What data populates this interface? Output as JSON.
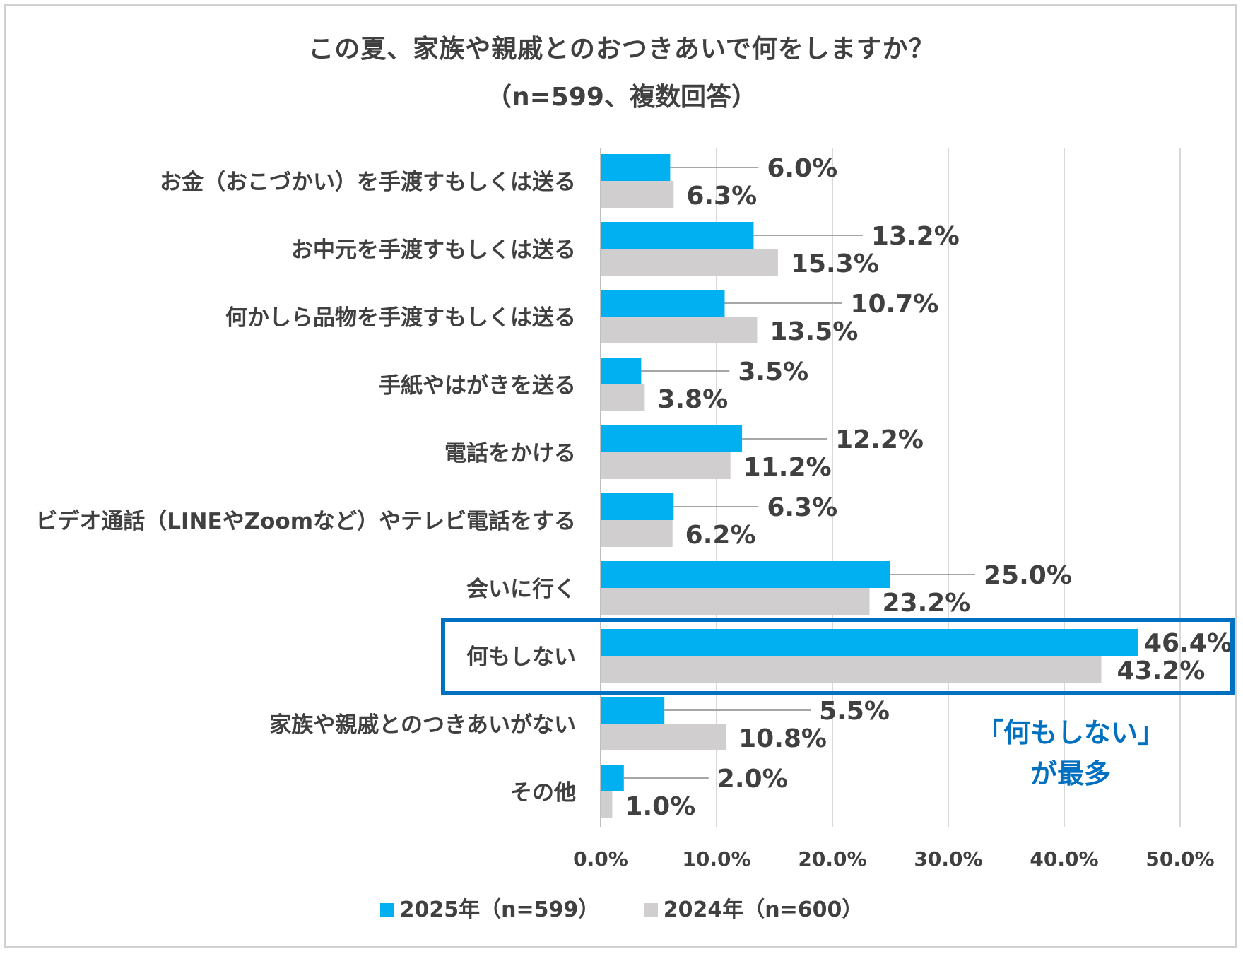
{
  "chart_data": {
    "type": "bar",
    "orientation": "horizontal",
    "title": "この夏、家族や親戚とのおつきあいで何をしますか？",
    "subtitle": "（n=599、複数回答）",
    "categories": [
      "お金（おこづかい）を手渡すもしくは送る",
      "お中元を手渡すもしくは送る",
      "何かしら品物を手渡すもしくは送る",
      "手紙やはがきを送る",
      "電話をかける",
      "ビデオ通話（LINEやZoomなど）やテレビ電話をする",
      "会いに行く",
      "何もしない",
      "家族や親戚とのつきあいがない",
      "その他"
    ],
    "series": [
      {
        "name": "2025年（n=599）",
        "color": "#00b0f0",
        "values": [
          6.0,
          13.2,
          10.7,
          3.5,
          12.2,
          6.3,
          25.0,
          46.4,
          5.5,
          2.0
        ],
        "labels": [
          "6.0%",
          "13.2%",
          "10.7%",
          "3.5%",
          "12.2%",
          "6.3%",
          "25.0%",
          "46.4%",
          "5.5%",
          "2.0%"
        ]
      },
      {
        "name": "2024年（n=600）",
        "color": "#d0cece",
        "values": [
          6.3,
          15.3,
          13.5,
          3.8,
          11.2,
          6.2,
          23.2,
          43.2,
          10.8,
          1.0
        ],
        "labels": [
          "6.3%",
          "15.3%",
          "13.5%",
          "3.8%",
          "11.2%",
          "6.2%",
          "23.2%",
          "43.2%",
          "10.8%",
          "1.0%"
        ]
      }
    ],
    "xlim": [
      0,
      50
    ],
    "xticks": [
      "0.0%",
      "10.0%",
      "20.0%",
      "30.0%",
      "40.0%",
      "50.0%"
    ],
    "grid": true,
    "legend": "bottom",
    "highlight": {
      "category": "何もしない",
      "color": "#0070c0"
    },
    "annotation": {
      "line1": "「何もしない」",
      "line2": "が最多",
      "color": "#0070c0"
    }
  }
}
